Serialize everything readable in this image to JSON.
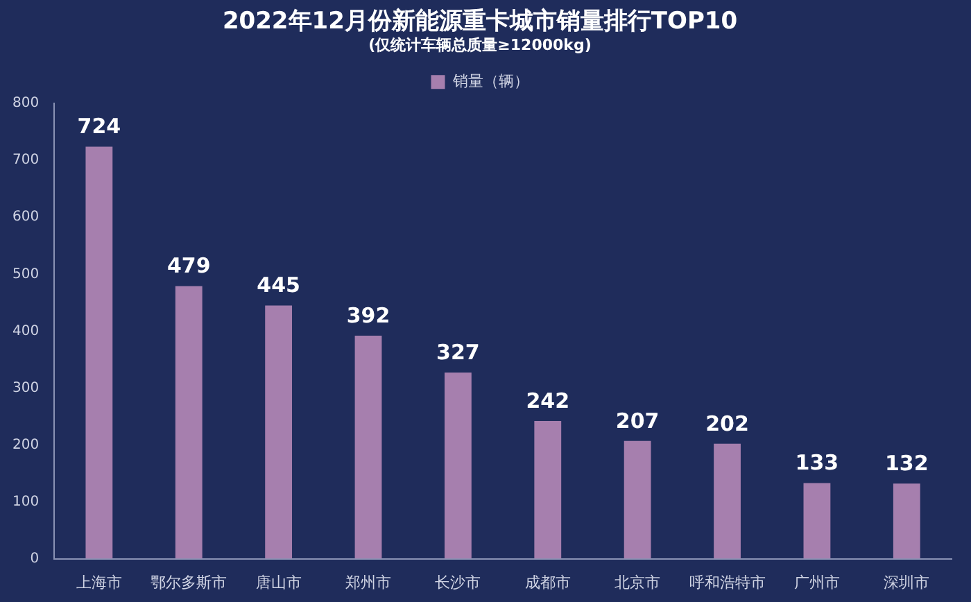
{
  "chart_data": {
    "type": "bar",
    "title": "2022年12月份新能源重卡城市销量排行TOP10",
    "subtitle": "(仅统计车辆总质量≥12000kg)",
    "categories": [
      "上海市",
      "鄂尔多斯市",
      "唐山市",
      "郑州市",
      "长沙市",
      "成都市",
      "北京市",
      "呼和浩特市",
      "广州市",
      "深圳市"
    ],
    "series": [
      {
        "name": "销量（辆）",
        "color": "#a67fae",
        "values": [
          724,
          479,
          445,
          392,
          327,
          242,
          207,
          202,
          133,
          132
        ]
      }
    ],
    "ylim": [
      0,
      800
    ],
    "yticks": [
      0,
      100,
      200,
      300,
      400,
      500,
      600,
      700,
      800
    ],
    "grid": false,
    "legend": "top",
    "data_labels": true
  }
}
